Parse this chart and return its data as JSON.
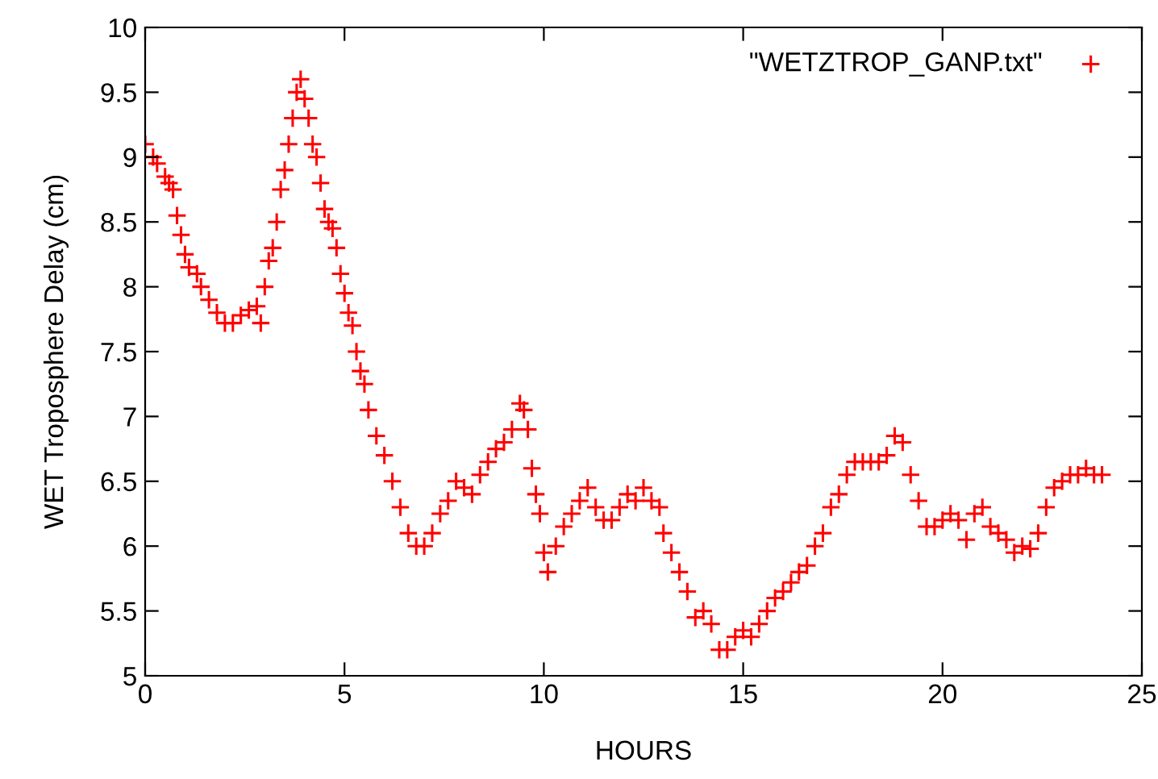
{
  "chart_data": {
    "type": "scatter",
    "xlabel": "HOURS",
    "ylabel": "WET Troposphere Delay (cm)",
    "xlim": [
      0,
      25
    ],
    "xticks": [
      0,
      5,
      10,
      15,
      20,
      25
    ],
    "ylim": [
      5,
      10
    ],
    "yticks": [
      5,
      5.5,
      6,
      6.5,
      7,
      7.5,
      8,
      8.5,
      9,
      9.5,
      10
    ],
    "grid": false,
    "legend": "top right",
    "marker": "cross",
    "series": [
      {
        "name": "\"WETZTROP_GANP.txt\"",
        "color": "#ff0000",
        "x": [
          0,
          0.2,
          0.3,
          0.5,
          0.6,
          0.7,
          0.8,
          0.9,
          1.0,
          1.1,
          1.3,
          1.4,
          1.6,
          1.8,
          2.0,
          2.2,
          2.4,
          2.6,
          2.8,
          2.9,
          3.0,
          3.1,
          3.2,
          3.3,
          3.4,
          3.5,
          3.6,
          3.7,
          3.8,
          3.9,
          4.0,
          4.1,
          4.2,
          4.3,
          4.4,
          4.5,
          4.6,
          4.7,
          4.8,
          4.9,
          5.0,
          5.1,
          5.2,
          5.3,
          5.4,
          5.5,
          5.6,
          5.8,
          6.0,
          6.2,
          6.4,
          6.6,
          6.8,
          7.0,
          7.2,
          7.4,
          7.6,
          7.8,
          8.0,
          8.2,
          8.4,
          8.6,
          8.8,
          9.0,
          9.2,
          9.4,
          9.5,
          9.6,
          9.7,
          9.8,
          9.9,
          10.0,
          10.1,
          10.3,
          10.5,
          10.7,
          10.9,
          11.1,
          11.3,
          11.5,
          11.7,
          11.9,
          12.1,
          12.3,
          12.5,
          12.7,
          12.9,
          13.0,
          13.2,
          13.4,
          13.6,
          13.8,
          14.0,
          14.2,
          14.4,
          14.6,
          14.8,
          15.0,
          15.2,
          15.4,
          15.6,
          15.8,
          16.0,
          16.2,
          16.4,
          16.6,
          16.8,
          17.0,
          17.2,
          17.4,
          17.6,
          17.8,
          18.0,
          18.2,
          18.4,
          18.6,
          18.8,
          19.0,
          19.2,
          19.4,
          19.6,
          19.8,
          20.0,
          20.2,
          20.4,
          20.6,
          20.8,
          21.0,
          21.2,
          21.4,
          21.6,
          21.8,
          22.0,
          22.2,
          22.4,
          22.6,
          22.8,
          23.0,
          23.2,
          23.4,
          23.6,
          23.8,
          24.0
        ],
        "values": [
          9.1,
          9.0,
          8.95,
          8.85,
          8.8,
          8.75,
          8.55,
          8.4,
          8.25,
          8.15,
          8.1,
          8.0,
          7.9,
          7.8,
          7.72,
          7.72,
          7.78,
          7.82,
          7.85,
          7.72,
          8.0,
          8.2,
          8.3,
          8.5,
          8.75,
          8.9,
          9.1,
          9.3,
          9.5,
          9.6,
          9.45,
          9.3,
          9.1,
          9.0,
          8.8,
          8.6,
          8.5,
          8.45,
          8.3,
          8.1,
          7.95,
          7.8,
          7.7,
          7.5,
          7.35,
          7.25,
          7.05,
          6.85,
          6.7,
          6.5,
          6.3,
          6.1,
          6.0,
          6.0,
          6.1,
          6.25,
          6.35,
          6.5,
          6.45,
          6.4,
          6.55,
          6.65,
          6.75,
          6.8,
          6.9,
          7.1,
          7.05,
          6.9,
          6.6,
          6.4,
          6.25,
          5.95,
          5.8,
          6.0,
          6.15,
          6.25,
          6.35,
          6.45,
          6.3,
          6.2,
          6.2,
          6.3,
          6.4,
          6.35,
          6.45,
          6.35,
          6.3,
          6.1,
          5.95,
          5.8,
          5.65,
          5.45,
          5.5,
          5.4,
          5.2,
          5.2,
          5.3,
          5.35,
          5.3,
          5.4,
          5.5,
          5.6,
          5.65,
          5.72,
          5.8,
          5.85,
          6.0,
          6.1,
          6.3,
          6.4,
          6.55,
          6.65,
          6.65,
          6.65,
          6.65,
          6.7,
          6.85,
          6.8,
          6.55,
          6.35,
          6.15,
          6.15,
          6.2,
          6.25,
          6.2,
          6.05,
          6.25,
          6.3,
          6.15,
          6.1,
          6.05,
          5.95,
          6.0,
          5.98,
          6.1,
          6.3,
          6.45,
          6.5,
          6.55,
          6.55,
          6.6,
          6.55,
          6.55
        ]
      }
    ]
  }
}
